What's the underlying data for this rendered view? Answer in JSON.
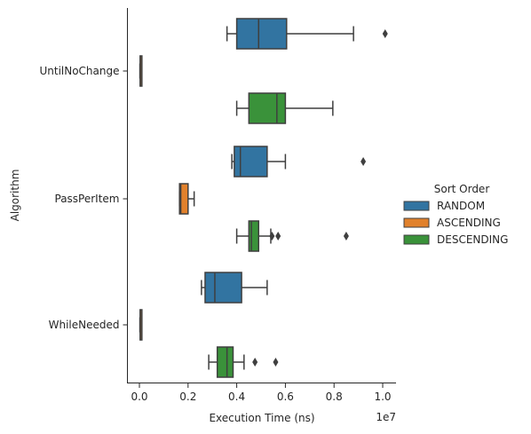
{
  "chart_data": {
    "type": "box",
    "orientation": "horizontal",
    "title": "",
    "xlabel": "Execution Time (ns)",
    "ylabel": "Algorithm",
    "x_offset_label": "1e7",
    "xlim": [
      -0.5,
      10.6
    ],
    "x_ticks": [
      0.0,
      0.2,
      0.4,
      0.6,
      0.8,
      1.0
    ],
    "x_tick_labels": [
      "0.0",
      "0.2",
      "0.4",
      "0.6",
      "0.8",
      "1.0"
    ],
    "x_tick_values_e7": [
      0.0,
      2.0,
      4.0,
      6.0,
      8.0,
      10.0
    ],
    "categories": [
      "UntilNoChange",
      "PassPerItem",
      "WhileNeeded"
    ],
    "legend": {
      "title": "Sort Order",
      "position": "right",
      "entries": [
        "RANDOM",
        "ASCENDING",
        "DESCENDING"
      ]
    },
    "series": [
      {
        "name": "RANDOM",
        "color": "#3274a1",
        "boxes": [
          {
            "whisker_low": 3.6,
            "q1": 4.0,
            "median": 4.9,
            "q3": 6.05,
            "whisker_high": 8.8,
            "outliers": [
              10.1
            ]
          },
          {
            "whisker_low": 3.8,
            "q1": 3.9,
            "median": 4.15,
            "q3": 5.25,
            "whisker_high": 6.0,
            "outliers": [
              9.2
            ]
          },
          {
            "whisker_low": 2.55,
            "q1": 2.7,
            "median": 3.1,
            "q3": 4.2,
            "whisker_high": 5.25,
            "outliers": []
          }
        ]
      },
      {
        "name": "ASCENDING",
        "color": "#e1812c",
        "boxes": [
          {
            "whisker_low": 0.02,
            "q1": 0.03,
            "median": 0.04,
            "q3": 0.06,
            "whisker_high": 0.07,
            "outliers": []
          },
          {
            "whisker_low": 1.65,
            "q1": 1.65,
            "median": 1.7,
            "q3": 2.0,
            "whisker_high": 2.25,
            "outliers": []
          },
          {
            "whisker_low": 0.02,
            "q1": 0.03,
            "median": 0.04,
            "q3": 0.06,
            "whisker_high": 0.07,
            "outliers": []
          }
        ]
      },
      {
        "name": "DESCENDING",
        "color": "#3a923a",
        "boxes": [
          {
            "whisker_low": 4.0,
            "q1": 4.5,
            "median": 5.65,
            "q3": 6.0,
            "whisker_high": 7.95,
            "outliers": []
          },
          {
            "whisker_low": 4.0,
            "q1": 4.5,
            "median": 4.6,
            "q3": 4.9,
            "whisker_high": 5.4,
            "outliers": [
              5.45,
              5.7,
              8.5
            ]
          },
          {
            "whisker_low": 2.85,
            "q1": 3.2,
            "median": 3.6,
            "q3": 3.85,
            "whisker_high": 4.3,
            "outliers": [
              4.75,
              5.6
            ]
          }
        ]
      }
    ],
    "grid": false
  }
}
